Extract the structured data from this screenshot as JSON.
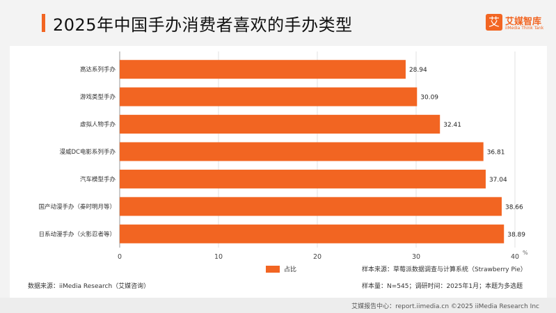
{
  "header": {
    "title": "2025年中国手办消费者喜欢的手办类型"
  },
  "logo": {
    "mark": "艾",
    "name": "艾媒智库",
    "sub": "iiMedia Think Tank"
  },
  "chart_data": {
    "type": "bar",
    "orientation": "horizontal",
    "title": "2025年中国手办消费者喜欢的手办类型",
    "categories": [
      "高达系列手办",
      "游戏类型手办",
      "虚拟人物手办",
      "漫威DC电影系列手办",
      "汽车模型手办",
      "国产动漫手办（秦时明月等）",
      "日系动漫手办（火影忍者等）"
    ],
    "series": [
      {
        "name": "占比",
        "values": [
          28.94,
          30.09,
          32.41,
          36.81,
          37.04,
          38.66,
          38.89
        ],
        "color": "#f26522"
      }
    ],
    "xlim": [
      0,
      40
    ],
    "x_ticks": [
      0,
      10,
      20,
      30,
      40
    ],
    "x_unit": "%",
    "grid": true,
    "legend": "bottom-center"
  },
  "notes": {
    "source": "数据来源：iiMedia Research（艾媒咨询）",
    "sample_source": "样本来源：草莓派数据调查与计算系统（Strawberry Pie）",
    "sample_size": "样本量：N=545；调研时间：2025年1月；本题为多选题"
  },
  "footer": {
    "text": "艾媒报告中心：report.iimedia.cn   ©2025 iiMedia Research Inc"
  },
  "colors": {
    "accent": "#f26522"
  }
}
